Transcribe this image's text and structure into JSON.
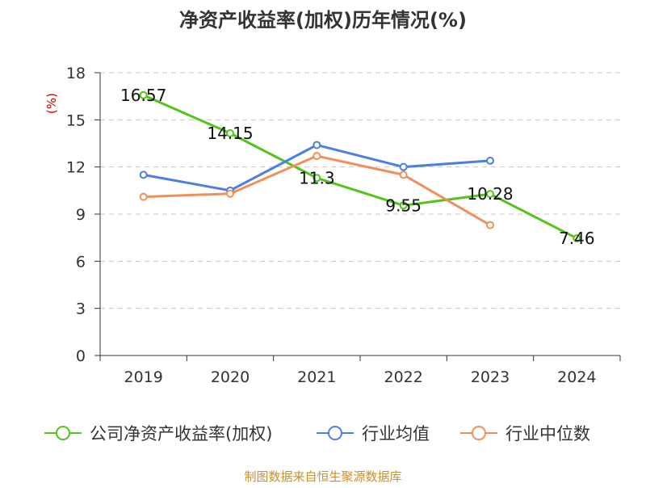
{
  "chart_data": {
    "type": "line",
    "title": "净资产收益率(加权)历年情况(%)",
    "ylabel": "(%)",
    "xlabel": "",
    "categories": [
      "2019",
      "2020",
      "2021",
      "2022",
      "2023",
      "2024"
    ],
    "ylim": [
      0,
      18
    ],
    "yticks": [
      0,
      3,
      6,
      9,
      12,
      15,
      18
    ],
    "grid": true,
    "legend_position": "bottom",
    "series": [
      {
        "name": "公司净资产收益率(加权)",
        "color": "#52c41a",
        "values": [
          16.57,
          14.15,
          11.3,
          9.55,
          10.28,
          7.46
        ],
        "labels": [
          "16.57",
          "14.15",
          "11.3",
          "9.55",
          "10.28",
          "7.46"
        ]
      },
      {
        "name": "行业均值",
        "color": "#4e7fe0",
        "values": [
          11.5,
          10.5,
          13.4,
          12.0,
          12.4,
          null
        ]
      },
      {
        "name": "行业中位数",
        "color": "#f28e5a",
        "values": [
          10.1,
          10.3,
          12.7,
          11.5,
          8.3,
          null
        ]
      }
    ],
    "source": "制图数据来自恒生聚源数据库"
  }
}
